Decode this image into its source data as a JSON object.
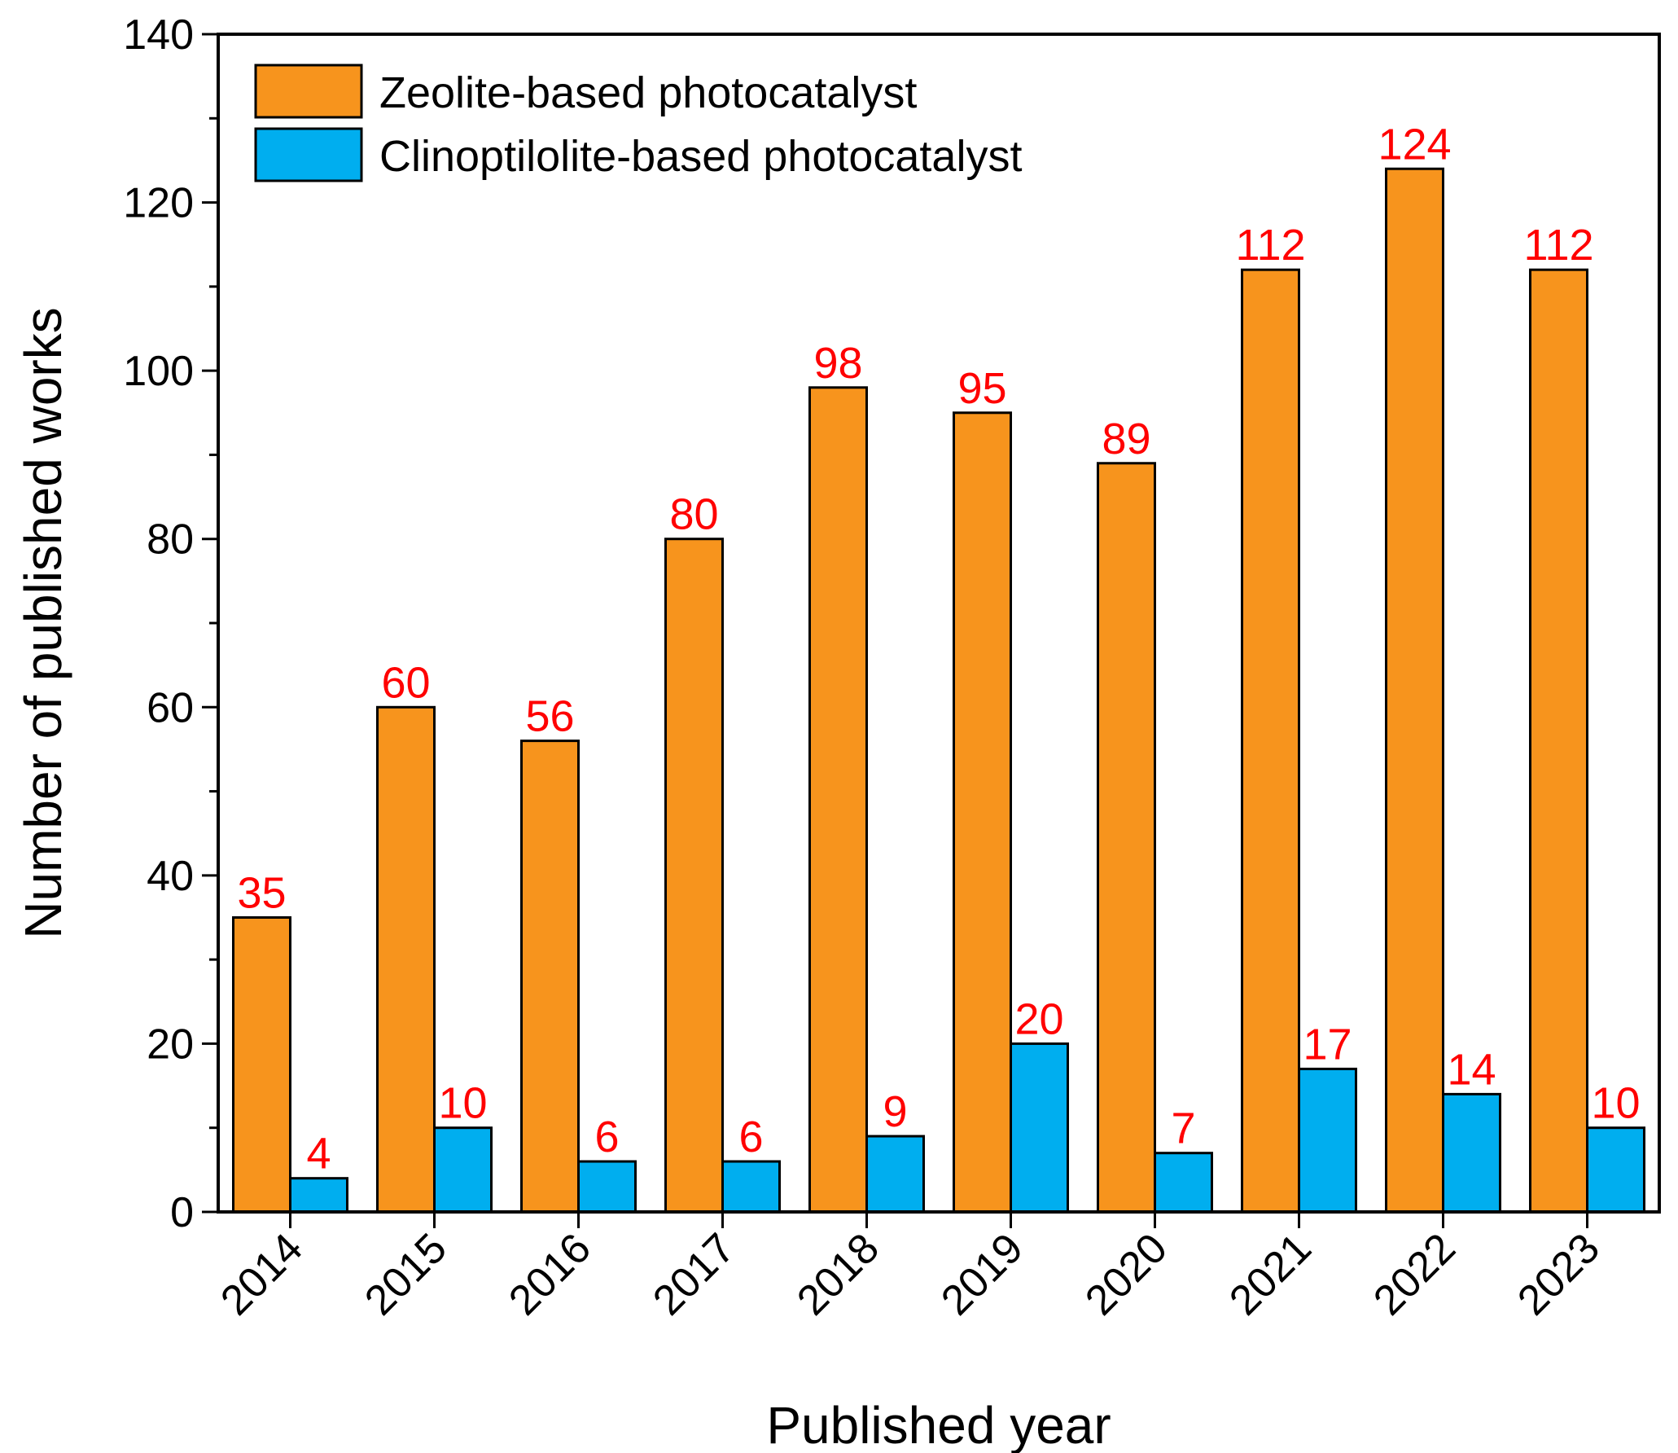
{
  "chart_data": {
    "type": "bar",
    "title": "",
    "xlabel": "Published year",
    "ylabel": "Number of published works",
    "categories": [
      "2014",
      "2015",
      "2016",
      "2017",
      "2018",
      "2019",
      "2020",
      "2021",
      "2022",
      "2023"
    ],
    "series": [
      {
        "name": "Zeolite-based photocatalyst",
        "color": "#F7941D",
        "values": [
          35,
          60,
          56,
          80,
          98,
          95,
          89,
          112,
          124,
          112
        ]
      },
      {
        "name": "Clinoptilolite-based photocatalyst",
        "color": "#00AEEF",
        "values": [
          4,
          10,
          6,
          6,
          9,
          20,
          7,
          17,
          14,
          10
        ]
      }
    ],
    "ylim": [
      0,
      140
    ],
    "yticks": [
      0,
      20,
      40,
      60,
      80,
      100,
      120,
      140
    ],
    "label_color": "#FF0000",
    "legend_position": "top-left",
    "grid": false
  }
}
